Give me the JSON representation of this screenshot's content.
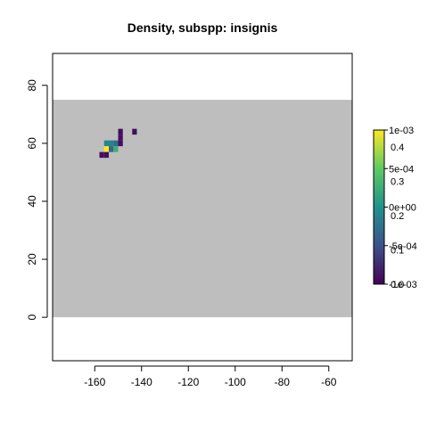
{
  "chart_data": {
    "type": "heatmap",
    "title": "Density, subspp: insignis",
    "xlabel": "",
    "ylabel": "",
    "xlim": [
      -178,
      -50
    ],
    "ylim": [
      -15,
      91
    ],
    "x_ticks": [
      -160,
      -140,
      -120,
      -100,
      -80,
      -60
    ],
    "y_ticks": [
      0,
      20,
      40,
      60,
      80
    ],
    "x_tick_labels": [
      "-160",
      "-140",
      "-120",
      "-100",
      "-80",
      "-60"
    ],
    "y_tick_labels": [
      "0",
      "20",
      "40",
      "60",
      "80"
    ],
    "grid": false,
    "background_region": {
      "x": [
        -178,
        -50
      ],
      "y": [
        0,
        75
      ],
      "color": "#bebebe"
    },
    "cell_size": [
      2,
      2
    ],
    "cells": [
      {
        "x": -149,
        "y": 64,
        "value": 0.02
      },
      {
        "x": -143,
        "y": 64,
        "value": 0.02
      },
      {
        "x": -149,
        "y": 62,
        "value": 0.02
      },
      {
        "x": -155,
        "y": 60,
        "value": 0.2
      },
      {
        "x": -153,
        "y": 60,
        "value": 0.2
      },
      {
        "x": -151,
        "y": 60,
        "value": 0.16
      },
      {
        "x": -149,
        "y": 60,
        "value": 0.02
      },
      {
        "x": -155,
        "y": 58,
        "value": 0.45
      },
      {
        "x": -153,
        "y": 58,
        "value": 0.15
      },
      {
        "x": -151,
        "y": 58,
        "value": 0.28
      },
      {
        "x": -157,
        "y": 56,
        "value": 0.02
      },
      {
        "x": -155,
        "y": 56,
        "value": 0.02
      }
    ],
    "legend": {
      "placement": "right",
      "colors": [
        "#440154",
        "#3b528b",
        "#21918c",
        "#5ec962",
        "#fde725"
      ],
      "labels_a": [
        "-1e-03",
        "-5e-04",
        "0e+00",
        "5e-04",
        "1e-03"
      ],
      "labels_b": [
        "0.0",
        "0.1",
        "0.2",
        "0.3",
        "0.4"
      ],
      "range_a": [
        -0.001,
        0.001
      ],
      "range_b": [
        0,
        0.45
      ]
    }
  }
}
